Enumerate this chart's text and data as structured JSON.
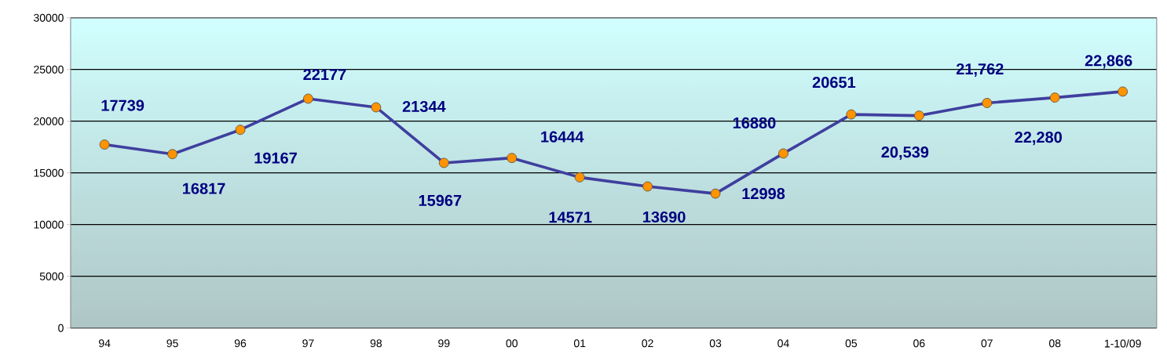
{
  "chart_data": {
    "type": "line",
    "categories": [
      "94",
      "95",
      "96",
      "97",
      "98",
      "99",
      "00",
      "01",
      "02",
      "03",
      "04",
      "05",
      "06",
      "07",
      "08",
      "1-10/09"
    ],
    "series": [
      {
        "color": "#3f3f9f",
        "values": [
          17739,
          16817,
          19167,
          22177,
          21344,
          15967,
          16444,
          14571,
          13690,
          12998,
          16880,
          20651,
          20539,
          21762,
          22280,
          22866
        ],
        "value_labels": [
          "17739",
          "16817",
          "19167",
          "22177",
          "21344",
          "15967",
          "16444",
          "14571",
          "13690",
          "12998",
          "16880",
          "20651",
          "20,539",
          "21,762",
          "22,280",
          "22,866"
        ]
      }
    ],
    "ylim": [
      0,
      30000
    ],
    "yticks": [
      0,
      5000,
      10000,
      15000,
      20000,
      25000,
      30000
    ],
    "grid": "y",
    "legend": false,
    "marker": "circle",
    "line_style": "solid"
  }
}
